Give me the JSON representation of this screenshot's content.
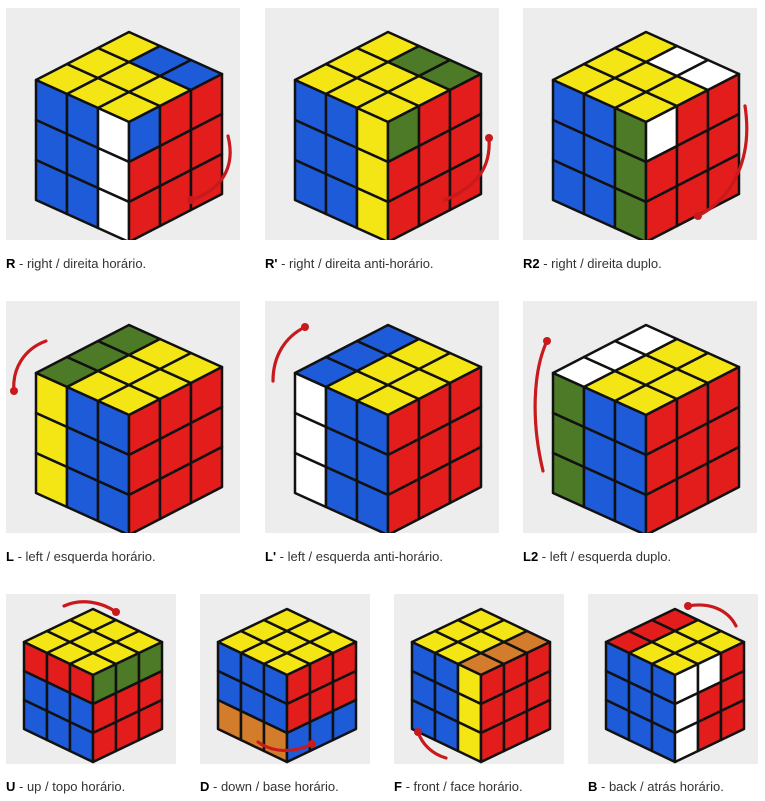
{
  "colors": {
    "yellow": "#f4e614",
    "blue": "#1e5bd8",
    "red": "#e31c1c",
    "white": "#ffffff",
    "green": "#4c7a26",
    "orange": "#d27c2c",
    "outline": "#111111",
    "arrow": "#c8191d",
    "panel": "#ededed"
  },
  "cards": [
    {
      "code": "R",
      "text": " - right / direita horário.",
      "arrow_icon": "curved-arrow-icon",
      "top": [
        "Y",
        "Y",
        "Y",
        "Y",
        "Y",
        "B",
        "Y",
        "Y",
        "B"
      ],
      "left": [
        "B",
        "B",
        "W",
        "B",
        "B",
        "W",
        "B",
        "B",
        "W"
      ],
      "right": [
        "B",
        "R",
        "R",
        "R",
        "R",
        "R",
        "R",
        "R",
        "R"
      ]
    },
    {
      "code": "R'",
      "text": " - right / direita anti-horário.",
      "arrow_icon": "curved-arrow-icon",
      "top": [
        "Y",
        "Y",
        "Y",
        "Y",
        "Y",
        "G",
        "Y",
        "Y",
        "G"
      ],
      "left": [
        "B",
        "B",
        "Y",
        "B",
        "B",
        "Y",
        "B",
        "B",
        "Y"
      ],
      "right": [
        "G",
        "R",
        "R",
        "R",
        "R",
        "R",
        "R",
        "R",
        "R"
      ]
    },
    {
      "code": "R2",
      "text": " - right / direita duplo.",
      "arrow_icon": "curved-arrow-icon",
      "top": [
        "Y",
        "Y",
        "Y",
        "Y",
        "Y",
        "W",
        "Y",
        "Y",
        "W"
      ],
      "left": [
        "B",
        "B",
        "G",
        "B",
        "B",
        "G",
        "B",
        "B",
        "G"
      ],
      "right": [
        "W",
        "R",
        "R",
        "R",
        "R",
        "R",
        "R",
        "R",
        "R"
      ]
    },
    {
      "code": "L",
      "text": " - left / esquerda horário.",
      "arrow_icon": "curved-arrow-icon",
      "top": [
        "G",
        "G",
        "G",
        "Y",
        "Y",
        "Y",
        "Y",
        "Y",
        "Y"
      ],
      "left": [
        "Y",
        "B",
        "B",
        "Y",
        "B",
        "B",
        "Y",
        "B",
        "B"
      ],
      "right": [
        "R",
        "R",
        "R",
        "R",
        "R",
        "R",
        "R",
        "R",
        "R"
      ]
    },
    {
      "code": "L'",
      "text": " - left / esquerda anti-horário.",
      "arrow_icon": "curved-arrow-icon",
      "top": [
        "B",
        "B",
        "B",
        "Y",
        "Y",
        "Y",
        "Y",
        "Y",
        "Y"
      ],
      "left": [
        "W",
        "B",
        "B",
        "W",
        "B",
        "B",
        "W",
        "B",
        "B"
      ],
      "right": [
        "R",
        "R",
        "R",
        "R",
        "R",
        "R",
        "R",
        "R",
        "R"
      ]
    },
    {
      "code": "L2",
      "text": " - left / esquerda duplo.",
      "arrow_icon": "curved-arrow-icon",
      "top": [
        "W",
        "W",
        "W",
        "Y",
        "Y",
        "Y",
        "Y",
        "Y",
        "Y"
      ],
      "left": [
        "G",
        "B",
        "B",
        "G",
        "B",
        "B",
        "G",
        "B",
        "B"
      ],
      "right": [
        "R",
        "R",
        "R",
        "R",
        "R",
        "R",
        "R",
        "R",
        "R"
      ]
    },
    {
      "code": "U",
      "text": " - up / topo horário.",
      "arrow_icon": "curved-arrow-icon",
      "top": [
        "Y",
        "Y",
        "Y",
        "Y",
        "Y",
        "Y",
        "Y",
        "Y",
        "Y"
      ],
      "left": [
        "R",
        "R",
        "R",
        "B",
        "B",
        "B",
        "B",
        "B",
        "B"
      ],
      "right": [
        "G",
        "G",
        "G",
        "R",
        "R",
        "R",
        "R",
        "R",
        "R"
      ]
    },
    {
      "code": "D",
      "text": " - down / base horário.",
      "arrow_icon": "curved-arrow-icon",
      "top": [
        "Y",
        "Y",
        "Y",
        "Y",
        "Y",
        "Y",
        "Y",
        "Y",
        "Y"
      ],
      "left": [
        "B",
        "B",
        "B",
        "B",
        "B",
        "B",
        "O",
        "O",
        "O"
      ],
      "right": [
        "R",
        "R",
        "R",
        "R",
        "R",
        "R",
        "B",
        "B",
        "B"
      ]
    },
    {
      "code": "F",
      "text": " - front / face horário.",
      "arrow_icon": "curved-arrow-icon",
      "top": [
        "Y",
        "Y",
        "Y",
        "Y",
        "Y",
        "Y",
        "O",
        "O",
        "O"
      ],
      "left": [
        "B",
        "B",
        "Y",
        "B",
        "B",
        "Y",
        "B",
        "B",
        "Y"
      ],
      "right": [
        "R",
        "R",
        "R",
        "R",
        "R",
        "R",
        "R",
        "R",
        "R"
      ]
    },
    {
      "code": "B",
      "text": " - back / atrás horário.",
      "arrow_icon": "curved-arrow-icon",
      "top": [
        "R",
        "R",
        "R",
        "Y",
        "Y",
        "Y",
        "Y",
        "Y",
        "Y"
      ],
      "left": [
        "B",
        "B",
        "B",
        "B",
        "B",
        "B",
        "B",
        "B",
        "B"
      ],
      "right": [
        "W",
        "W",
        "R",
        "W",
        "R",
        "R",
        "W",
        "R",
        "R"
      ]
    }
  ]
}
